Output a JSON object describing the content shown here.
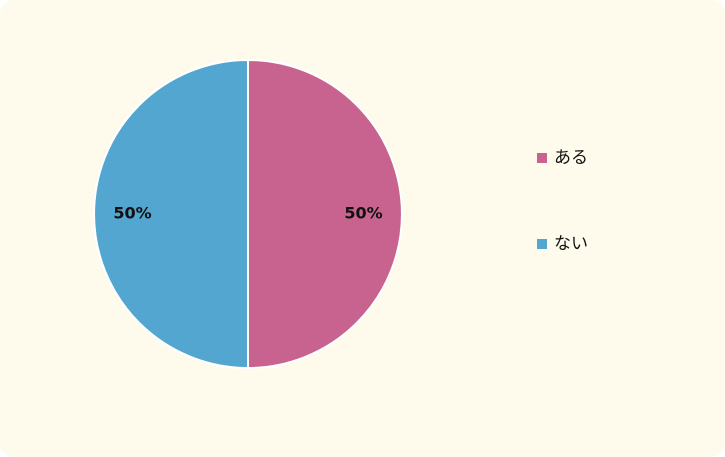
{
  "chart_data": {
    "type": "pie",
    "categories": [
      "ある",
      "ない"
    ],
    "values": [
      50,
      50
    ],
    "value_labels": [
      "50%",
      "50%"
    ],
    "colors": [
      "#c8638f",
      "#52a6d0"
    ],
    "legend": "right"
  }
}
